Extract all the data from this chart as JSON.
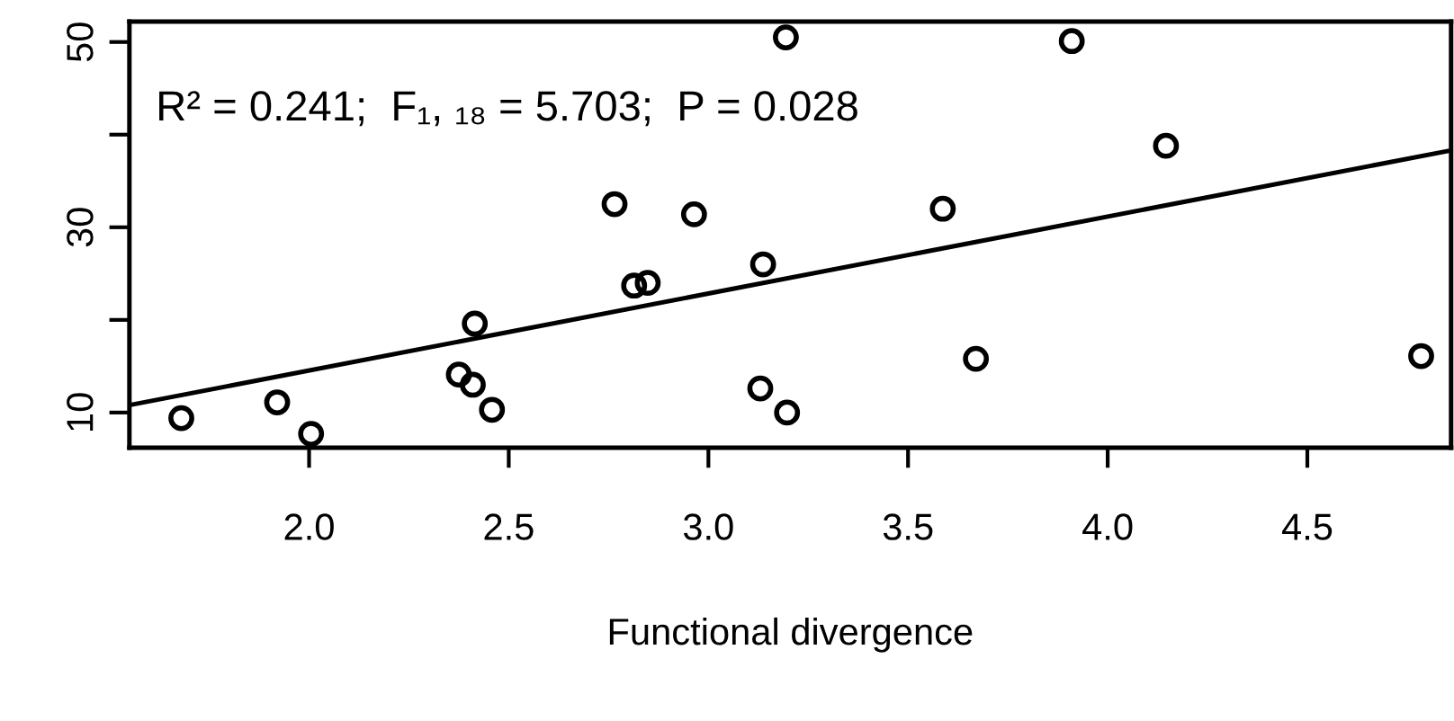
{
  "chart_data": {
    "type": "scatter",
    "xlabel": "Functional divergence",
    "annotations": [
      "R² = 0.241;  F₁, ₁₈ = 5.703;  P = 0.028"
    ],
    "xlim": [
      1.55,
      4.86
    ],
    "ylim": [
      6.2,
      52.2
    ],
    "xticks": [
      {
        "value": 2,
        "label": "2.0"
      },
      {
        "value": 2.5,
        "label": "2.5"
      },
      {
        "value": 3,
        "label": "3.0"
      },
      {
        "value": 3.5,
        "label": "3.5"
      },
      {
        "value": 4,
        "label": "4.0"
      },
      {
        "value": 4.5,
        "label": "4.5"
      }
    ],
    "yticks": [
      10,
      {
        "value": 20,
        "label": null
      },
      30,
      {
        "value": 40,
        "label": null
      },
      50
    ],
    "grid": false,
    "series": [
      {
        "type": "scatter",
        "marker": "circle",
        "color": "#000000",
        "x": [
          1.68,
          1.92,
          2.005,
          2.375,
          2.41,
          2.415,
          2.458,
          2.765,
          2.814,
          2.848,
          2.964,
          3.137,
          3.13,
          3.197,
          3.194,
          3.587,
          3.67,
          3.91,
          4.146,
          4.785
        ],
        "values": [
          9.4,
          11.1,
          7.7,
          14.1,
          13.0,
          19.6,
          10.3,
          32.5,
          23.7,
          24.0,
          31.4,
          26.0,
          12.6,
          10.0,
          50.5,
          32.0,
          15.8,
          50.1,
          38.8,
          16.1
        ]
      },
      {
        "type": "line",
        "color": "#000000",
        "x": [
          1.55,
          4.86
        ],
        "values": [
          10.8,
          38.3
        ]
      }
    ]
  }
}
